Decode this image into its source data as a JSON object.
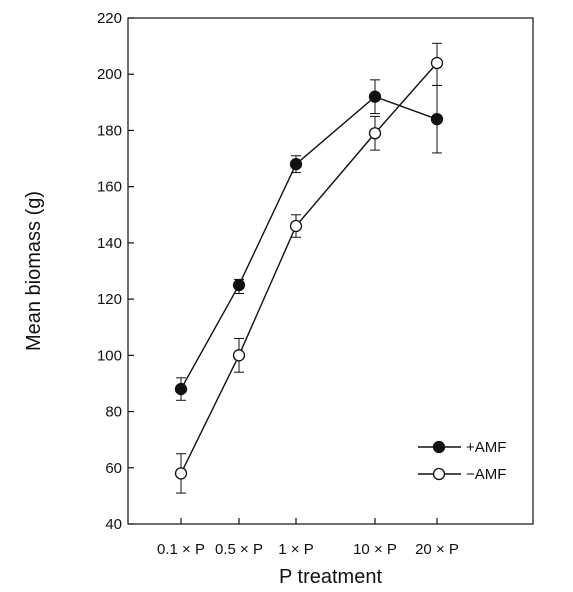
{
  "chart_data": {
    "type": "line",
    "title": "",
    "xlabel": "P treatment",
    "ylabel": "Mean biomass (g)",
    "categories": [
      "0.1 × P",
      "0.5 × P",
      "1 × P",
      "10 × P",
      "20 × P"
    ],
    "ylim": [
      40,
      220
    ],
    "yticks": [
      40,
      60,
      80,
      100,
      120,
      140,
      160,
      180,
      200,
      220
    ],
    "grid": false,
    "legend_position": "bottom-right",
    "series": [
      {
        "name": "+AMF",
        "marker": "filled-circle",
        "color": "#111111",
        "values": [
          88,
          125,
          168,
          192,
          184
        ],
        "error_low": [
          84,
          122,
          165,
          186,
          172
        ],
        "error_high": [
          92,
          127,
          171,
          198,
          196
        ]
      },
      {
        "name": "−AMF",
        "marker": "open-circle",
        "color": "#111111",
        "values": [
          58,
          100,
          146,
          179,
          204
        ],
        "error_low": [
          51,
          94,
          142,
          173,
          196
        ],
        "error_high": [
          65,
          106,
          150,
          185,
          211
        ]
      }
    ]
  }
}
